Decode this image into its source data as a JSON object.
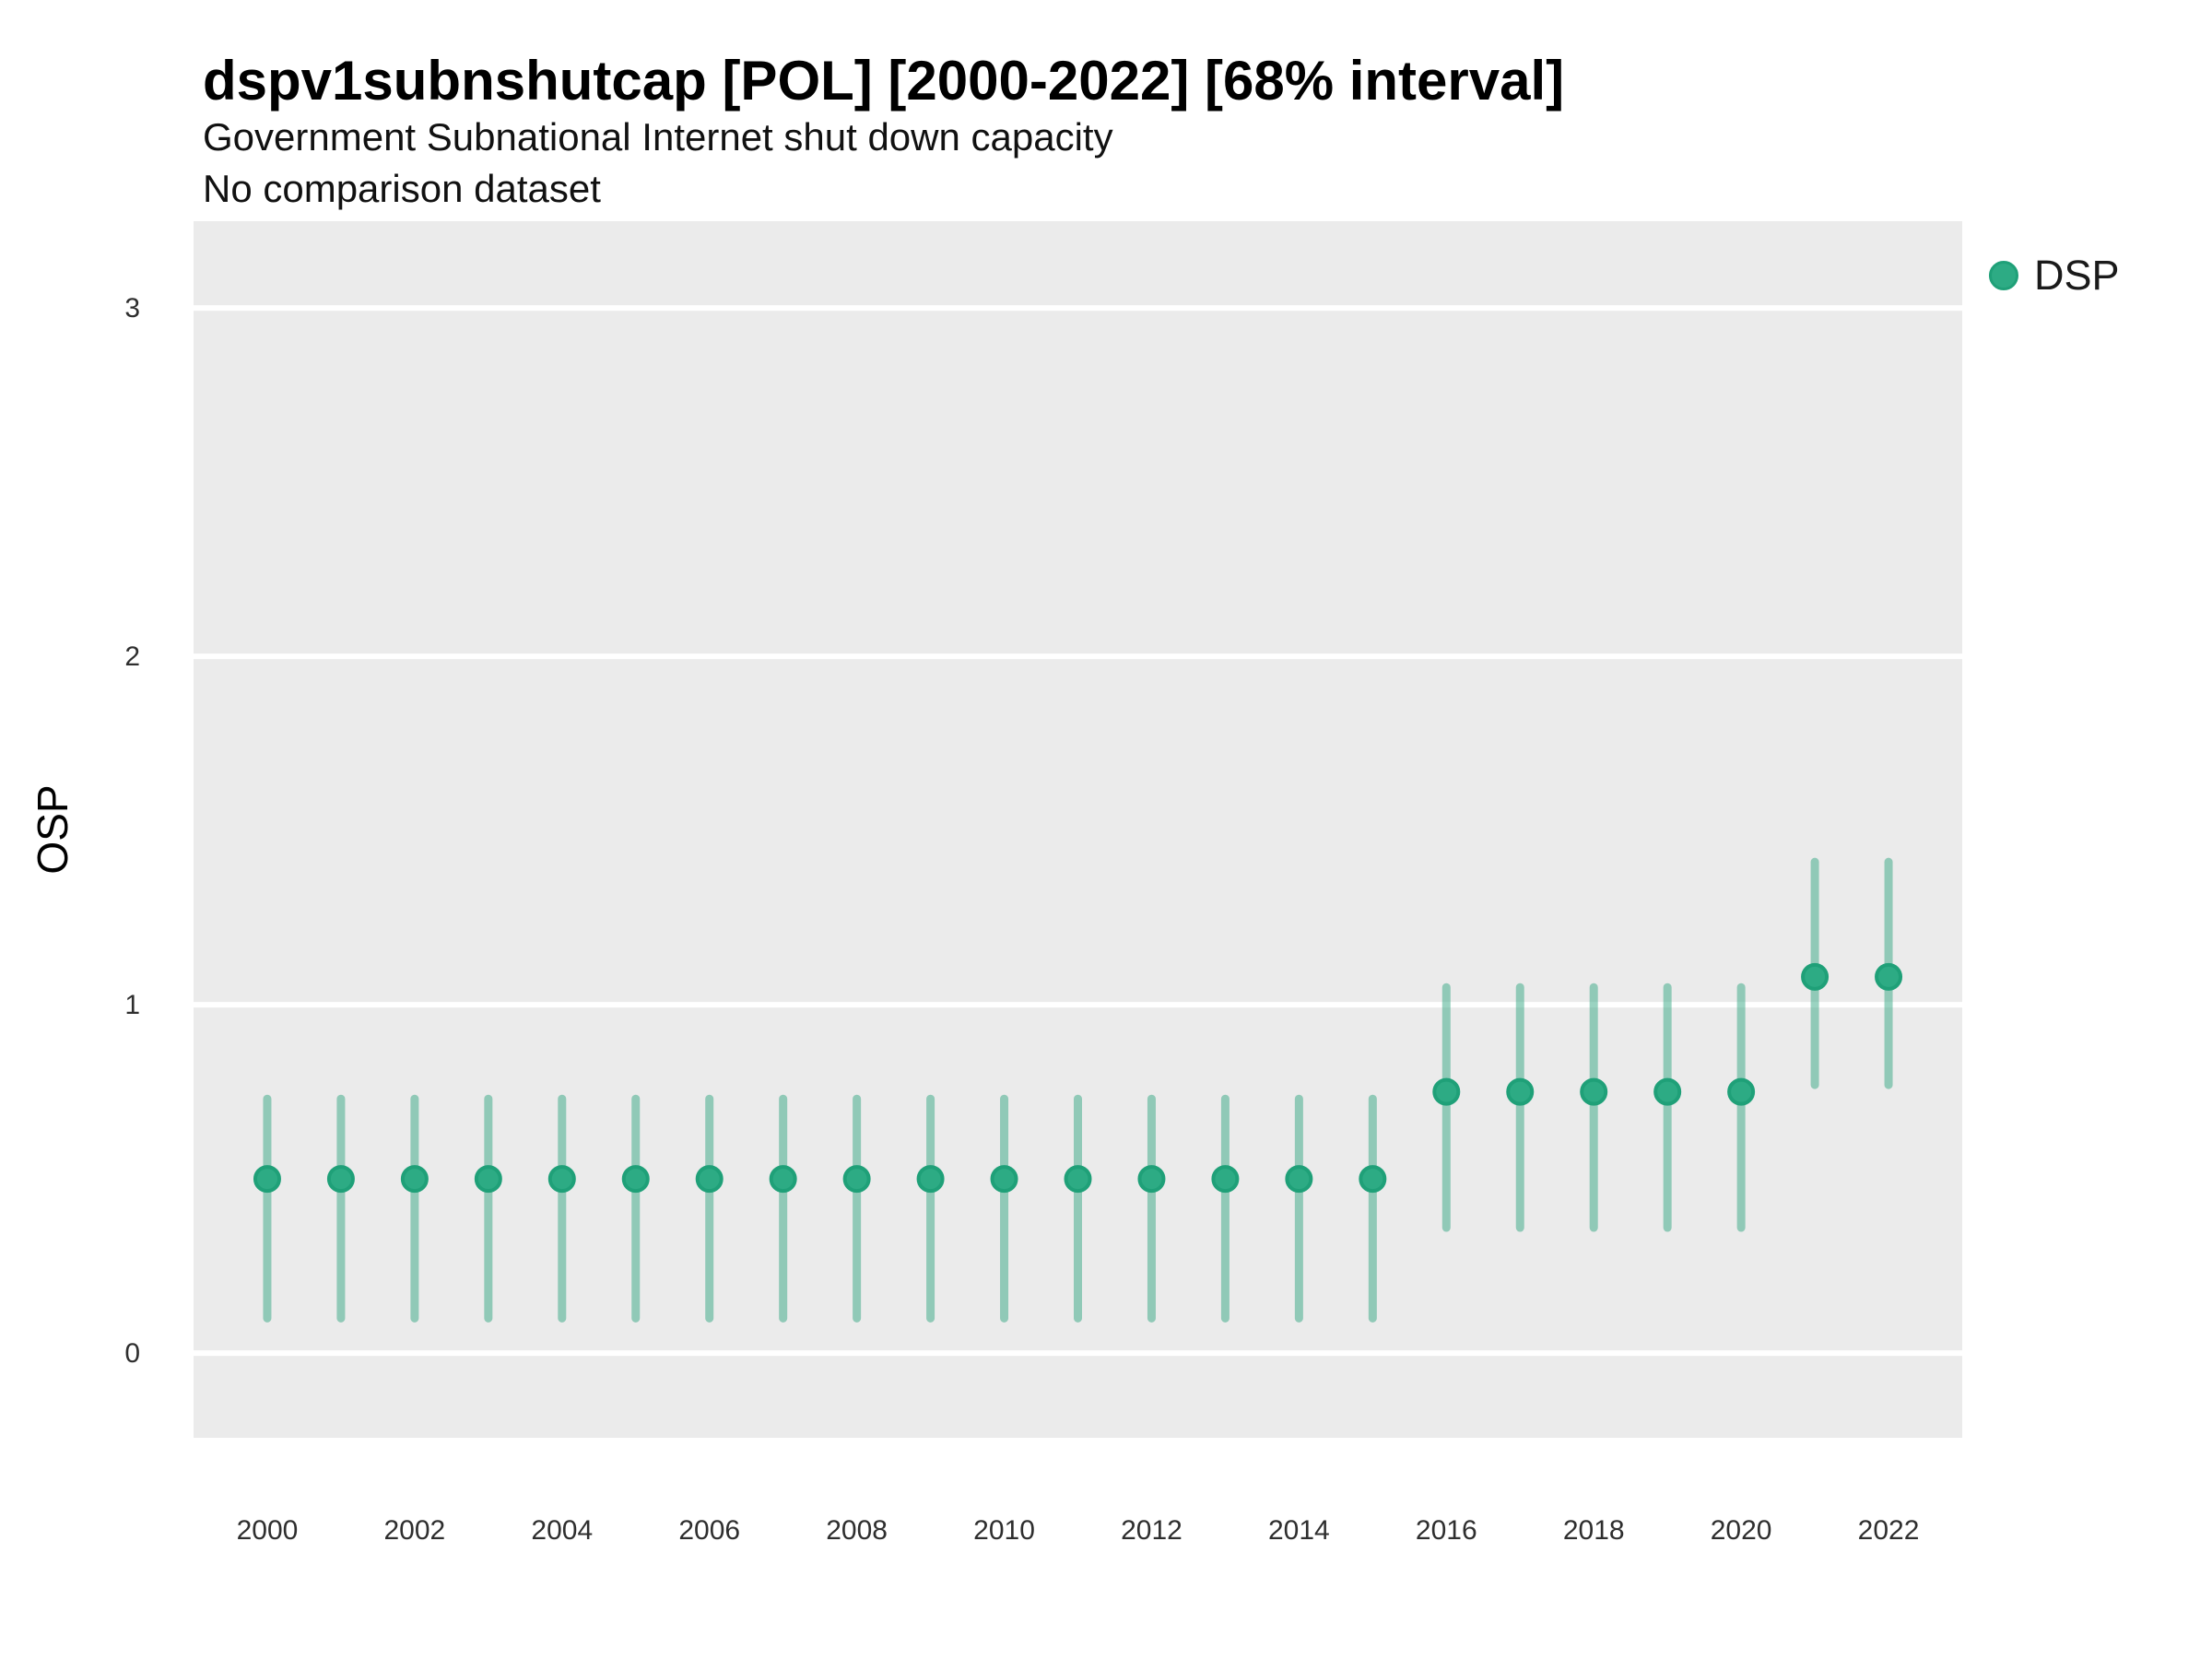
{
  "chart_data": {
    "type": "scatter",
    "mark": "pointrange",
    "title": "dspv1subnshutcap [POL] [2000-2022] [68% interval]",
    "subtitle": "Government Subnational Internet shut down capacity",
    "note": "No comparison dataset",
    "xlabel": "",
    "ylabel": "OSP",
    "interval_level": "68%",
    "xlim": [
      1999,
      2023
    ],
    "ylim": [
      -0.243,
      3.249
    ],
    "x_ticks": [
      2000,
      2002,
      2004,
      2006,
      2008,
      2010,
      2012,
      2014,
      2016,
      2018,
      2020,
      2022
    ],
    "y_ticks": [
      0,
      1,
      2,
      3
    ],
    "grid": {
      "horizontal_major": true,
      "vertical": false,
      "color": "#ffffff"
    },
    "panel_bg": "#ebebeb",
    "legend": {
      "position": "right",
      "entries": [
        {
          "label": "DSP",
          "color": "#2dab84"
        }
      ]
    },
    "series": [
      {
        "name": "DSP",
        "point_color": "#2dab84",
        "point_stroke": "#1fa078",
        "interval_color": "rgba(53,168,131,0.5)",
        "x": [
          2000,
          2001,
          2002,
          2003,
          2004,
          2005,
          2006,
          2007,
          2008,
          2009,
          2010,
          2011,
          2012,
          2013,
          2014,
          2015,
          2016,
          2017,
          2018,
          2019,
          2020,
          2021,
          2022
        ],
        "y": [
          0.5,
          0.5,
          0.5,
          0.5,
          0.5,
          0.5,
          0.5,
          0.5,
          0.5,
          0.5,
          0.5,
          0.5,
          0.5,
          0.5,
          0.5,
          0.5,
          0.75,
          0.75,
          0.75,
          0.75,
          0.75,
          1.08,
          1.08
        ],
        "y_low": [
          0.1,
          0.1,
          0.1,
          0.1,
          0.1,
          0.1,
          0.1,
          0.1,
          0.1,
          0.1,
          0.1,
          0.1,
          0.1,
          0.1,
          0.1,
          0.1,
          0.36,
          0.36,
          0.36,
          0.36,
          0.36,
          0.77,
          0.77
        ],
        "y_high": [
          0.73,
          0.73,
          0.73,
          0.73,
          0.73,
          0.73,
          0.73,
          0.73,
          0.73,
          0.73,
          0.73,
          0.73,
          0.73,
          0.73,
          0.73,
          0.73,
          1.05,
          1.05,
          1.05,
          1.05,
          1.05,
          1.41,
          1.41
        ]
      }
    ]
  }
}
